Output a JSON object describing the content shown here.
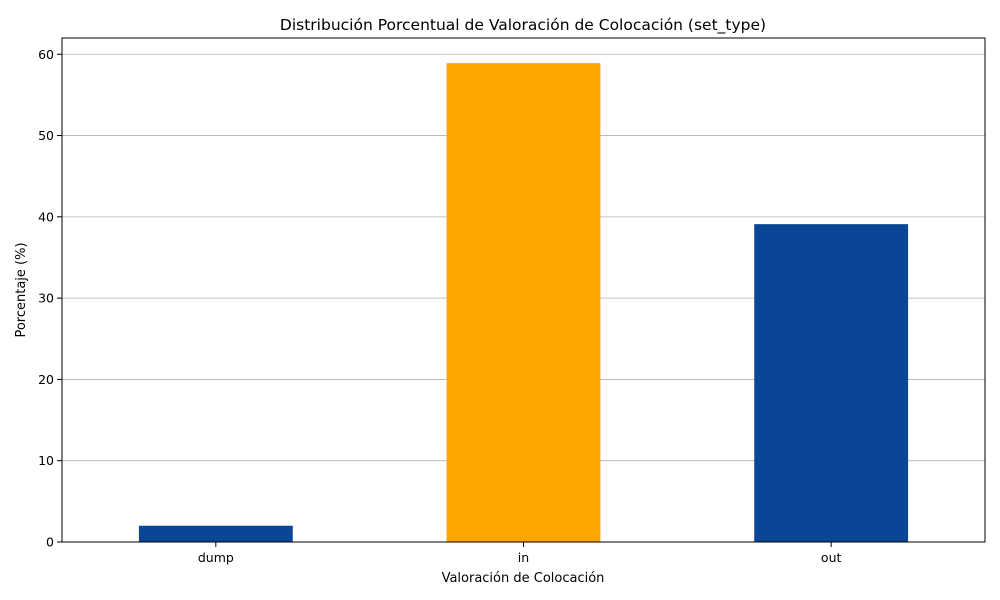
{
  "chart_data": {
    "type": "bar",
    "title": "Distribución Porcentual de Valoración de Colocación (set_type)",
    "xlabel": "Valoración de Colocación",
    "ylabel": "Porcentaje (%)",
    "categories": [
      "dump",
      "in",
      "out"
    ],
    "values": [
      2.0,
      58.9,
      39.1
    ],
    "bar_colors": [
      "#0b4595",
      "#ffa500",
      "#0b4595"
    ],
    "ylim": [
      0,
      62
    ],
    "yticks": [
      0,
      10,
      20,
      30,
      40,
      50,
      60
    ],
    "grid": "y-major",
    "legend": "none"
  }
}
